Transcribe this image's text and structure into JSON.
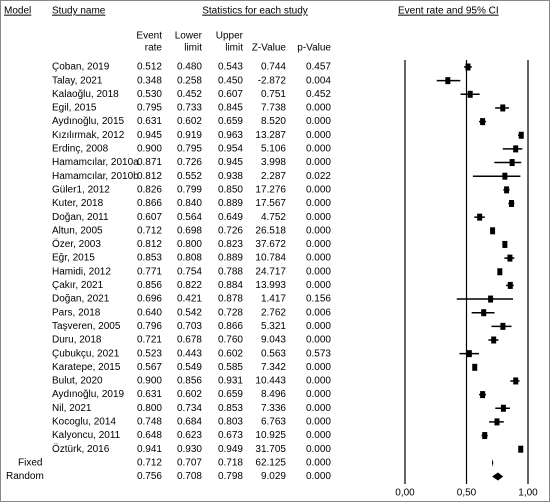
{
  "chart_data": {
    "type": "forest",
    "headers": {
      "model": "Model",
      "study": "Study name",
      "stats": "Statistics for each study",
      "plot": "Event rate and 95% CI",
      "columns": [
        [
          "Event",
          "rate"
        ],
        [
          "Lower",
          "limit"
        ],
        [
          "Upper",
          "limit"
        ],
        [
          "Z-Value"
        ],
        [
          "p-Value"
        ]
      ]
    },
    "rows": [
      [
        "Çoban, 2019",
        "0.512",
        "0.480",
        "0.543",
        "0.744",
        "0.457"
      ],
      [
        "Talay, 2021",
        "0.348",
        "0.258",
        "0.450",
        "-2.872",
        "0.004"
      ],
      [
        "Kalaoğlu, 2018",
        "0.530",
        "0.452",
        "0.607",
        "0.751",
        "0.452"
      ],
      [
        "Egil, 2015",
        "0.795",
        "0.733",
        "0.845",
        "7.738",
        "0.000"
      ],
      [
        "Aydınoğlu, 2015",
        "0.631",
        "0.602",
        "0.659",
        "8.520",
        "0.000"
      ],
      [
        "Kızılırmak, 2012",
        "0.945",
        "0.919",
        "0.963",
        "13.287",
        "0.000"
      ],
      [
        "Erdinç, 2008",
        "0.900",
        "0.795",
        "0.954",
        "5.106",
        "0.000"
      ],
      [
        "Hamamcılar, 2010a",
        "0.871",
        "0.726",
        "0.945",
        "3.998",
        "0.000"
      ],
      [
        "Hamamcılar, 2010b",
        "0.812",
        "0.552",
        "0.938",
        "2.287",
        "0.022"
      ],
      [
        "Güler1, 2012",
        "0.826",
        "0.799",
        "0.850",
        "17.276",
        "0.000"
      ],
      [
        "Kuter, 2018",
        "0.866",
        "0.840",
        "0.889",
        "17.567",
        "0.000"
      ],
      [
        "Doğan, 2011",
        "0.607",
        "0.564",
        "0.649",
        "4.752",
        "0.000"
      ],
      [
        "Altun, 2005",
        "0.712",
        "0.698",
        "0.726",
        "26.518",
        "0.000"
      ],
      [
        "Özer, 2003",
        "0.812",
        "0.800",
        "0.823",
        "37.672",
        "0.000"
      ],
      [
        "Eğr, 2015",
        "0.853",
        "0.808",
        "0.889",
        "10.784",
        "0.000"
      ],
      [
        "Hamidi, 2012",
        "0.771",
        "0.754",
        "0.788",
        "24.717",
        "0.000"
      ],
      [
        "Çakır, 2021",
        "0.856",
        "0.822",
        "0.884",
        "13.993",
        "0.000"
      ],
      [
        "Doğan, 2021",
        "0.696",
        "0.421",
        "0.878",
        "1.417",
        "0.156"
      ],
      [
        "Pars, 2018",
        "0.640",
        "0.542",
        "0.728",
        "2.762",
        "0.006"
      ],
      [
        "Taşveren, 2005",
        "0.796",
        "0.703",
        "0.866",
        "5.321",
        "0.000"
      ],
      [
        "Duru, 2018",
        "0.721",
        "0.678",
        "0.760",
        "9.043",
        "0.000"
      ],
      [
        "Çubukçu, 2021",
        "0.523",
        "0.443",
        "0.602",
        "0.563",
        "0.573"
      ],
      [
        "Karatepe, 2015",
        "0.567",
        "0.549",
        "0.585",
        "7.342",
        "0.000"
      ],
      [
        "Bulut, 2020",
        "0.900",
        "0.856",
        "0.931",
        "10.443",
        "0.000"
      ],
      [
        "Aydınoğlu, 2019",
        "0.631",
        "0.602",
        "0.659",
        "8.496",
        "0.000"
      ],
      [
        "Nil, 2021",
        "0.800",
        "0.734",
        "0.853",
        "7.336",
        "0.000"
      ],
      [
        "Kocoglu, 2014",
        "0.748",
        "0.684",
        "0.803",
        "6.763",
        "0.000"
      ],
      [
        "Kalyoncu, 2011",
        "0.648",
        "0.623",
        "0.673",
        "10.925",
        "0.000"
      ],
      [
        "Öztürk, 2016",
        "0.941",
        "0.930",
        "0.949",
        "31.705",
        "0.000"
      ]
    ],
    "summary": [
      [
        "Fixed",
        "0.712",
        "0.707",
        "0.718",
        "62.125",
        "0.000"
      ],
      [
        "Random",
        "0.756",
        "0.708",
        "0.798",
        "9.029",
        "0.000"
      ]
    ],
    "xlim": [
      0,
      1
    ],
    "xticks": [
      {
        "value": 0,
        "label": "0,00"
      },
      {
        "value": 0.5,
        "label": "0,50"
      },
      {
        "value": 1,
        "label": "1,00"
      }
    ]
  }
}
